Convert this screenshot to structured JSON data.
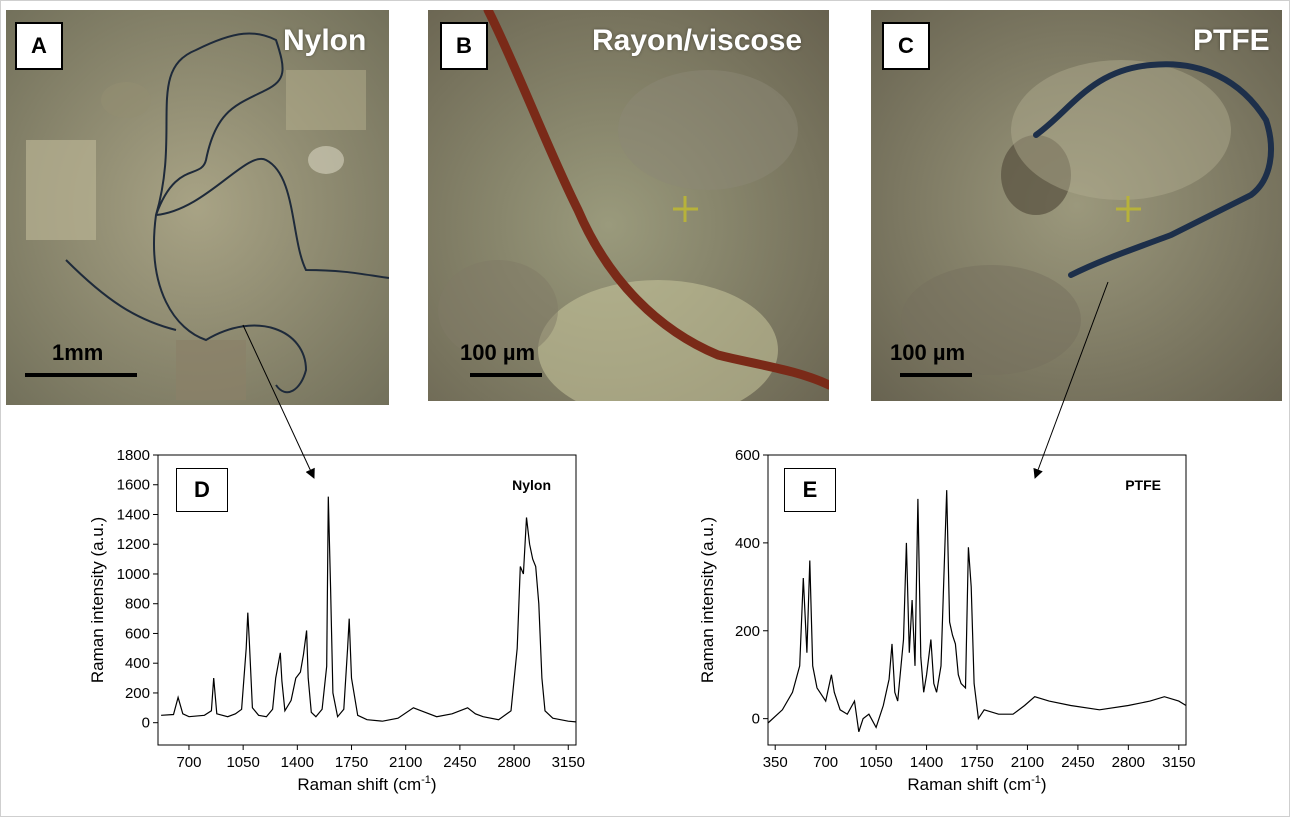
{
  "panels": {
    "a": {
      "letter": "A",
      "title": "Nylon",
      "scale": "1mm"
    },
    "b": {
      "letter": "B",
      "title": "Rayon/viscose",
      "scale": "100 µm"
    },
    "c": {
      "letter": "C",
      "title": "PTFE",
      "scale": "100 µm"
    },
    "d": {
      "letter": "D"
    },
    "e": {
      "letter": "E"
    }
  },
  "colors": {
    "micrograph_bg": "#8c8a6e",
    "nylon_fiber": "#1e2a3a",
    "rayon_fiber": "#7a2a18",
    "ptfe_fiber": "#1d2f4a",
    "crosshair": "#b7b23a"
  },
  "chart_data": [
    {
      "type": "line",
      "title": "",
      "legend": "Nylon",
      "xlabel": "Raman shift (cm",
      "xlabel_sup": "-1",
      "xlabel_end": ")",
      "ylabel": "Raman intensity (a.u.)",
      "xlim": [
        500,
        3200
      ],
      "ylim": [
        -150,
        1800
      ],
      "xticks": [
        700,
        1050,
        1400,
        1750,
        2100,
        2450,
        2800,
        3150
      ],
      "yticks": [
        0,
        200,
        400,
        600,
        800,
        1000,
        1200,
        1400,
        1600,
        1800
      ],
      "series": [
        {
          "x": [
            520,
            600,
            630,
            660,
            700,
            800,
            845,
            860,
            880,
            950,
            1000,
            1040,
            1070,
            1080,
            1090,
            1110,
            1150,
            1200,
            1240,
            1260,
            1290,
            1300,
            1320,
            1360,
            1390,
            1420,
            1440,
            1460,
            1470,
            1490,
            1520,
            1560,
            1590,
            1600,
            1615,
            1630,
            1660,
            1700,
            1725,
            1735,
            1750,
            1790,
            1850,
            1950,
            2050,
            2150,
            2200,
            2300,
            2400,
            2500,
            2550,
            2600,
            2700,
            2780,
            2820,
            2840,
            2860,
            2880,
            2900,
            2920,
            2940,
            2960,
            2980,
            3000,
            3050,
            3100,
            3150,
            3200
          ],
          "y": [
            50,
            55,
            170,
            60,
            40,
            50,
            80,
            300,
            60,
            40,
            60,
            90,
            500,
            740,
            550,
            100,
            50,
            40,
            90,
            300,
            470,
            280,
            80,
            150,
            300,
            340,
            460,
            620,
            300,
            70,
            40,
            90,
            380,
            1520,
            900,
            200,
            40,
            90,
            500,
            700,
            300,
            50,
            20,
            10,
            30,
            100,
            80,
            40,
            60,
            100,
            60,
            40,
            20,
            80,
            500,
            1050,
            1000,
            1380,
            1200,
            1100,
            1050,
            800,
            300,
            80,
            30,
            20,
            10,
            5
          ]
        }
      ]
    },
    {
      "type": "line",
      "title": "",
      "legend": "PTFE",
      "xlabel": "Raman shift (cm",
      "xlabel_sup": "-1",
      "xlabel_end": ")",
      "ylabel": "Raman intensity (a.u.)",
      "xlim": [
        300,
        3200
      ],
      "ylim": [
        -60,
        600
      ],
      "xticks": [
        350,
        700,
        1050,
        1400,
        1750,
        2100,
        2450,
        2800,
        3150
      ],
      "yticks": [
        0,
        200,
        400,
        600
      ],
      "series": [
        {
          "x": [
            300,
            400,
            470,
            520,
            545,
            570,
            590,
            610,
            640,
            700,
            740,
            760,
            800,
            850,
            900,
            930,
            960,
            1000,
            1050,
            1100,
            1140,
            1160,
            1180,
            1200,
            1240,
            1260,
            1280,
            1300,
            1320,
            1340,
            1360,
            1380,
            1400,
            1430,
            1450,
            1470,
            1500,
            1540,
            1560,
            1580,
            1600,
            1620,
            1640,
            1670,
            1690,
            1710,
            1730,
            1760,
            1800,
            1900,
            2000,
            2080,
            2150,
            2250,
            2400,
            2600,
            2800,
            2950,
            3050,
            3150,
            3200
          ],
          "y": [
            -10,
            20,
            60,
            120,
            320,
            150,
            360,
            120,
            70,
            40,
            100,
            60,
            20,
            10,
            40,
            -30,
            0,
            10,
            -20,
            30,
            90,
            170,
            60,
            40,
            180,
            400,
            150,
            270,
            120,
            500,
            140,
            60,
            100,
            180,
            80,
            60,
            120,
            520,
            220,
            190,
            170,
            100,
            80,
            70,
            390,
            300,
            80,
            0,
            20,
            10,
            10,
            30,
            50,
            40,
            30,
            20,
            30,
            40,
            50,
            40,
            30
          ]
        }
      ]
    }
  ]
}
